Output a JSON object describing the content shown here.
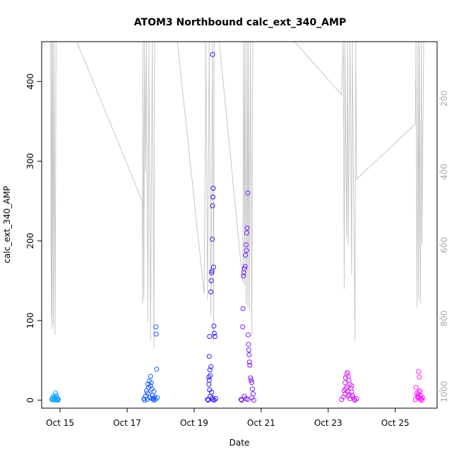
{
  "chart_data": {
    "type": "scatter",
    "title": "ATOM3 Northbound calc_ext_340_AMP",
    "xlabel": "Date",
    "ylabel": "calc_ext_340_AMP",
    "x_ticks": [
      "Oct 15",
      "Oct 17",
      "Oct 19",
      "Oct 21",
      "Oct 23",
      "Oct 25"
    ],
    "x_tick_days": [
      15,
      17,
      19,
      21,
      23,
      25
    ],
    "xlim_days": [
      14.45,
      26.25
    ],
    "ylim": [
      -10,
      450
    ],
    "y_ticks": [
      0,
      100,
      200,
      300,
      400
    ],
    "right_axis": {
      "description": "secondary axis, reversed (depth-like), drawn in grey",
      "ticks": [
        200,
        400,
        600,
        800,
        1000
      ],
      "ylim": [
        1045,
        45
      ],
      "color": "#c8c8c8"
    },
    "gridlines": false,
    "series_points": [
      {
        "color": "#1aa3ff",
        "points": [
          [
            14.75,
            1
          ],
          [
            14.78,
            2
          ],
          [
            14.8,
            0
          ],
          [
            14.82,
            3
          ],
          [
            14.84,
            1
          ],
          [
            14.86,
            2
          ],
          [
            14.88,
            0
          ],
          [
            14.9,
            4
          ],
          [
            14.92,
            1
          ],
          [
            14.94,
            0
          ],
          [
            14.86,
            9
          ],
          [
            14.88,
            6
          ],
          [
            14.8,
            5
          ],
          [
            14.83,
            3
          ],
          [
            14.77,
            2
          ],
          [
            14.95,
            1
          ],
          [
            14.9,
            2
          ],
          [
            14.84,
            4
          ]
        ]
      },
      {
        "color": "#1a5cff",
        "points": [
          [
            17.5,
            2
          ],
          [
            17.55,
            5
          ],
          [
            17.6,
            1
          ],
          [
            17.62,
            20
          ],
          [
            17.65,
            8
          ],
          [
            17.68,
            3
          ],
          [
            17.7,
            30
          ],
          [
            17.72,
            22
          ],
          [
            17.74,
            14
          ],
          [
            17.76,
            6
          ],
          [
            17.78,
            2
          ],
          [
            17.8,
            11
          ],
          [
            17.82,
            4
          ],
          [
            17.84,
            1
          ],
          [
            17.86,
            92
          ],
          [
            17.87,
            83
          ],
          [
            17.88,
            39
          ],
          [
            17.58,
            12
          ],
          [
            17.64,
            16
          ],
          [
            17.66,
            24
          ],
          [
            17.7,
            18
          ],
          [
            17.52,
            0
          ],
          [
            17.9,
            3
          ],
          [
            17.6,
            9
          ],
          [
            17.75,
            2
          ],
          [
            17.8,
            0
          ]
        ]
      },
      {
        "color": "#2b1aff",
        "points": [
          [
            19.4,
            1
          ],
          [
            19.42,
            0
          ],
          [
            19.44,
            29
          ],
          [
            19.45,
            55
          ],
          [
            19.46,
            80
          ],
          [
            19.47,
            38
          ],
          [
            19.48,
            31
          ],
          [
            19.5,
            136
          ],
          [
            19.51,
            150
          ],
          [
            19.52,
            160
          ],
          [
            19.53,
            162
          ],
          [
            19.54,
            202
          ],
          [
            19.55,
            244
          ],
          [
            19.56,
            255
          ],
          [
            19.57,
            266
          ],
          [
            19.58,
            167
          ],
          [
            19.59,
            93
          ],
          [
            19.6,
            84
          ],
          [
            19.62,
            80
          ],
          [
            19.55,
            434
          ],
          [
            19.44,
            20
          ],
          [
            19.46,
            13
          ],
          [
            19.48,
            5
          ],
          [
            19.5,
            42
          ],
          [
            19.52,
            10
          ],
          [
            19.54,
            3
          ],
          [
            19.56,
            1
          ],
          [
            19.6,
            0
          ],
          [
            19.64,
            2
          ],
          [
            19.45,
            25
          ]
        ]
      },
      {
        "color": "#7a1aff",
        "points": [
          [
            20.4,
            1
          ],
          [
            20.42,
            0
          ],
          [
            20.45,
            92
          ],
          [
            20.46,
            115
          ],
          [
            20.48,
            160
          ],
          [
            20.5,
            165
          ],
          [
            20.52,
            168
          ],
          [
            20.53,
            182
          ],
          [
            20.55,
            195
          ],
          [
            20.56,
            188
          ],
          [
            20.57,
            210
          ],
          [
            20.58,
            216
          ],
          [
            20.6,
            260
          ],
          [
            20.61,
            82
          ],
          [
            20.62,
            70
          ],
          [
            20.63,
            63
          ],
          [
            20.64,
            57
          ],
          [
            20.65,
            48
          ],
          [
            20.66,
            44
          ],
          [
            20.68,
            28
          ],
          [
            20.7,
            25
          ],
          [
            20.72,
            22
          ],
          [
            20.74,
            14
          ],
          [
            20.76,
            8
          ],
          [
            20.5,
            5
          ],
          [
            20.55,
            2
          ],
          [
            20.6,
            1
          ],
          [
            20.47,
            156
          ],
          [
            20.72,
            3
          ],
          [
            20.78,
            0
          ]
        ]
      },
      {
        "color": "#d11aff",
        "points": [
          [
            23.4,
            1
          ],
          [
            23.45,
            4
          ],
          [
            23.48,
            12
          ],
          [
            23.5,
            22
          ],
          [
            23.52,
            28
          ],
          [
            23.55,
            33
          ],
          [
            23.58,
            35
          ],
          [
            23.6,
            30
          ],
          [
            23.62,
            25
          ],
          [
            23.65,
            20
          ],
          [
            23.68,
            15
          ],
          [
            23.7,
            10
          ],
          [
            23.72,
            6
          ],
          [
            23.75,
            3
          ],
          [
            23.78,
            1
          ],
          [
            23.8,
            0
          ],
          [
            23.5,
            8
          ],
          [
            23.55,
            16
          ],
          [
            23.6,
            5
          ],
          [
            23.65,
            2
          ],
          [
            23.7,
            18
          ],
          [
            23.52,
            14
          ],
          [
            23.58,
            11
          ],
          [
            23.62,
            7
          ],
          [
            23.85,
            2
          ]
        ]
      },
      {
        "color": "#ff1aff",
        "points": [
          [
            25.6,
            1
          ],
          [
            25.62,
            16
          ],
          [
            25.65,
            9
          ],
          [
            25.68,
            3
          ],
          [
            25.7,
            36
          ],
          [
            25.72,
            29
          ],
          [
            25.74,
            12
          ],
          [
            25.76,
            6
          ],
          [
            25.78,
            2
          ],
          [
            25.8,
            0
          ],
          [
            25.66,
            5
          ],
          [
            25.72,
            10
          ],
          [
            25.75,
            1
          ],
          [
            25.68,
            7
          ],
          [
            25.7,
            4
          ],
          [
            25.82,
            3
          ]
        ]
      }
    ],
    "grey_line_series": {
      "description": "secondary-axis trace, values in right-axis units",
      "color": "#c8c8c8",
      "points": [
        [
          14.72,
          45
        ],
        [
          14.73,
          620
        ],
        [
          14.74,
          800
        ],
        [
          14.75,
          45
        ],
        [
          14.76,
          830
        ],
        [
          14.78,
          45
        ],
        [
          14.8,
          820
        ],
        [
          14.82,
          45
        ],
        [
          14.85,
          845
        ],
        [
          14.88,
          45
        ],
        [
          15.5,
          45
        ],
        [
          17.45,
          480
        ],
        [
          17.46,
          760
        ],
        [
          17.47,
          45
        ],
        [
          17.5,
          750
        ],
        [
          17.52,
          45
        ],
        [
          17.55,
          400
        ],
        [
          17.58,
          45
        ],
        [
          17.62,
          810
        ],
        [
          17.65,
          45
        ],
        [
          17.7,
          860
        ],
        [
          17.75,
          45
        ],
        [
          17.8,
          880
        ],
        [
          17.82,
          45
        ],
        [
          18.5,
          45
        ],
        [
          19.3,
          735
        ],
        [
          19.35,
          45
        ],
        [
          19.4,
          750
        ],
        [
          19.45,
          45
        ],
        [
          19.5,
          790
        ],
        [
          19.55,
          45
        ],
        [
          19.58,
          860
        ],
        [
          19.6,
          45
        ],
        [
          19.75,
          45
        ],
        [
          20.45,
          700
        ],
        [
          20.48,
          45
        ],
        [
          20.5,
          710
        ],
        [
          20.52,
          45
        ],
        [
          20.55,
          760
        ],
        [
          20.58,
          45
        ],
        [
          20.6,
          770
        ],
        [
          20.62,
          45
        ],
        [
          20.65,
          780
        ],
        [
          20.68,
          45
        ],
        [
          20.72,
          850
        ],
        [
          20.75,
          45
        ],
        [
          20.8,
          45
        ],
        [
          22.0,
          45
        ],
        [
          23.4,
          190
        ],
        [
          23.45,
          45
        ],
        [
          23.48,
          720
        ],
        [
          23.5,
          45
        ],
        [
          23.55,
          580
        ],
        [
          23.58,
          45
        ],
        [
          23.6,
          600
        ],
        [
          23.65,
          45
        ],
        [
          23.7,
          680
        ],
        [
          23.72,
          45
        ],
        [
          23.8,
          860
        ],
        [
          23.82,
          45
        ],
        [
          23.85,
          420
        ],
        [
          25.6,
          270
        ],
        [
          25.62,
          45
        ],
        [
          25.65,
          770
        ],
        [
          25.68,
          45
        ],
        [
          25.7,
          750
        ],
        [
          25.72,
          45
        ],
        [
          25.75,
          760
        ],
        [
          25.78,
          45
        ],
        [
          25.8,
          600
        ],
        [
          25.85,
          45
        ]
      ]
    }
  }
}
